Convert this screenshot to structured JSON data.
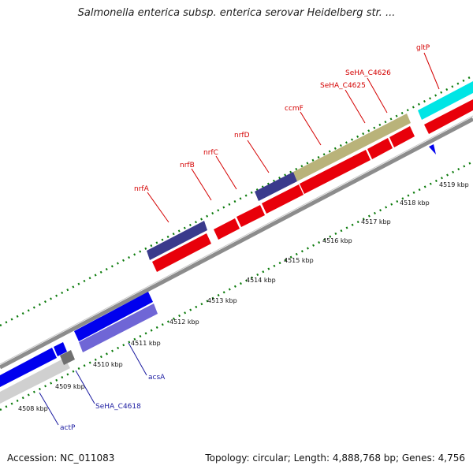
{
  "title": "Salmonella enterica subsp. enterica serovar Heidelberg str. ...",
  "footer": {
    "accession": "Accession: NC_011083",
    "topology": "Topology: circular; Length: 4,888,768 bp; Genes: 4,756"
  },
  "ticks": [
    {
      "label": "4508 kbp"
    },
    {
      "label": "4509 kbp"
    },
    {
      "label": "4510 kbp"
    },
    {
      "label": "4511 kbp"
    },
    {
      "label": "4512 kbp"
    },
    {
      "label": "4513 kbp"
    },
    {
      "label": "4514 kbp"
    },
    {
      "label": "4515 kbp"
    },
    {
      "label": "4516 kbp"
    },
    {
      "label": "4517 kbp"
    },
    {
      "label": "4518 kbp"
    },
    {
      "label": "4519 kbp"
    }
  ],
  "genes_forward": [
    "nrfA",
    "nrfB",
    "nrfC",
    "nrfD",
    "ccmF",
    "SeHA_C4625",
    "SeHA_C4626",
    "gltP"
  ],
  "genes_reverse": [
    "acsA",
    "SeHA_C4618",
    "actP"
  ],
  "colors": {
    "forward_cds": "#e8000a",
    "reverse_cds": "#0000ee",
    "forward_track_dark": "#3a3a8c",
    "forward_track_olive": "#b9b37a",
    "cyan_feature": "#00e5e5",
    "reverse_light": "#6f66d6",
    "backbone": "#8c8c8c",
    "tick_green": "#0a7a0a",
    "label_red": "#d40000",
    "label_blue": "#1a1aa0"
  }
}
